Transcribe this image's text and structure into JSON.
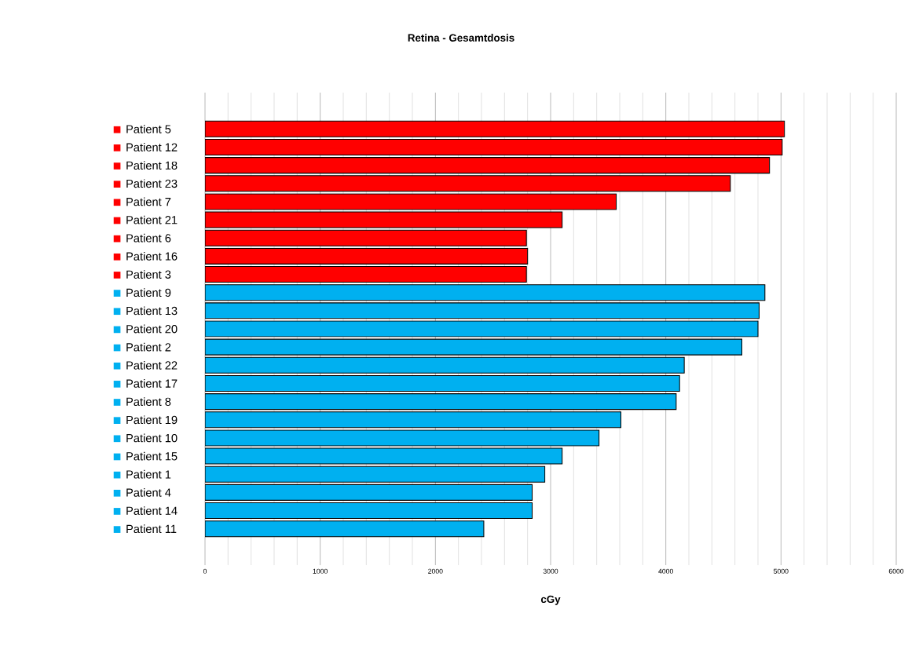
{
  "chart_data": {
    "type": "bar",
    "orientation": "horizontal",
    "title": "Retina - Gesamtdosis",
    "xlabel": "cGy",
    "categories": [
      "Patient 5",
      "Patient 12",
      "Patient 18",
      "Patient 23",
      "Patient 7",
      "Patient 21",
      "Patient 6",
      "Patient 16",
      "Patient 3",
      "Patient 9",
      "Patient 13",
      "Patient 20",
      "Patient 2",
      "Patient 22",
      "Patient 17",
      "Patient 8",
      "Patient 19",
      "Patient 10",
      "Patient 15",
      "Patient 1",
      "Patient 4",
      "Patient 14",
      "Patient 11"
    ],
    "values": [
      5030,
      5010,
      4900,
      4560,
      3570,
      3100,
      2790,
      2800,
      2790,
      4860,
      4810,
      4800,
      4660,
      4160,
      4120,
      4090,
      3610,
      3420,
      3100,
      2950,
      2840,
      2840,
      2420
    ],
    "colors": [
      "#ff0000",
      "#ff0000",
      "#ff0000",
      "#ff0000",
      "#ff0000",
      "#ff0000",
      "#ff0000",
      "#ff0000",
      "#ff0000",
      "#00b0f0",
      "#00b0f0",
      "#00b0f0",
      "#00b0f0",
      "#00b0f0",
      "#00b0f0",
      "#00b0f0",
      "#00b0f0",
      "#00b0f0",
      "#00b0f0",
      "#00b0f0",
      "#00b0f0",
      "#00b0f0",
      "#00b0f0"
    ],
    "xlim": [
      0,
      6000
    ],
    "xticks": [
      0,
      1000,
      2000,
      3000,
      4000,
      5000,
      6000
    ],
    "grid": "x"
  }
}
